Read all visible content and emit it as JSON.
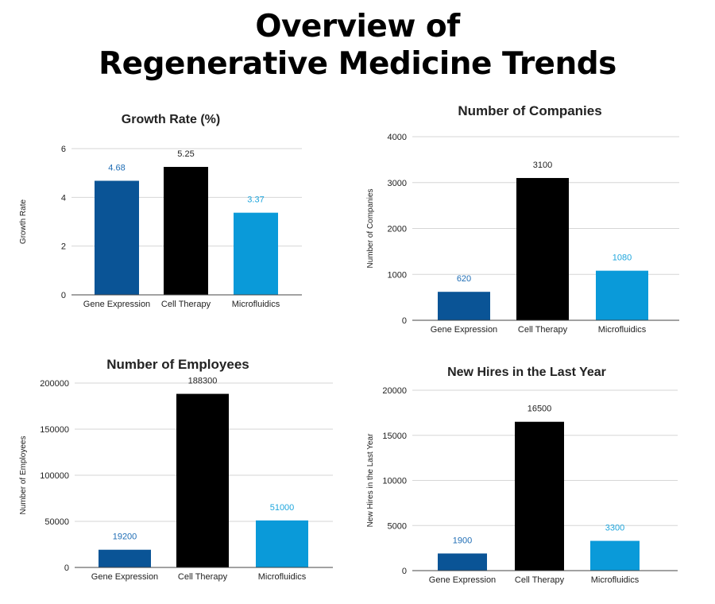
{
  "page": {
    "title_line1": "Overview of",
    "title_line2": "Regenerative Medicine Trends"
  },
  "colors": {
    "gene_expression": "#0a5496",
    "cell_therapy": "#000000",
    "microfluidics": "#0a9ad9",
    "label_blue": "#1f6db5",
    "label_light": "#1fa6dd",
    "label_dark": "#222222"
  },
  "chart_data": [
    {
      "id": "growth",
      "type": "bar",
      "title": "Growth Rate (%)",
      "xlabel": "",
      "ylabel": "Growth Rate",
      "categories": [
        "Gene Expression",
        "Cell Therapy",
        "Microfluidics"
      ],
      "values": [
        4.68,
        5.25,
        3.37
      ],
      "value_labels": [
        "4.68",
        "5.25",
        "3.37"
      ],
      "ylim": [
        0,
        6
      ],
      "yticks": [
        0,
        2,
        4,
        6
      ],
      "grid": true
    },
    {
      "id": "companies",
      "type": "bar",
      "title": "Number of Companies",
      "xlabel": "",
      "ylabel": "Number of Companies",
      "categories": [
        "Gene Expression",
        "Cell Therapy",
        "Microfluidics"
      ],
      "values": [
        620,
        3100,
        1080
      ],
      "value_labels": [
        "620",
        "3100",
        "1080"
      ],
      "ylim": [
        0,
        4000
      ],
      "yticks": [
        0,
        1000,
        2000,
        3000,
        4000
      ],
      "grid": true
    },
    {
      "id": "employees",
      "type": "bar",
      "title": "Number of Employees",
      "xlabel": "",
      "ylabel": "Number of Employees",
      "categories": [
        "Gene Expression",
        "Cell Therapy",
        "Microfluidics"
      ],
      "values": [
        19200,
        188300,
        51000
      ],
      "value_labels": [
        "19200",
        "188300",
        "51000"
      ],
      "ylim": [
        0,
        200000
      ],
      "yticks": [
        0,
        50000,
        100000,
        150000,
        200000
      ],
      "grid": true
    },
    {
      "id": "hires",
      "type": "bar",
      "title": "New Hires in the Last Year",
      "xlabel": "",
      "ylabel": "New Hires in the Last Year",
      "categories": [
        "Gene Expression",
        "Cell Therapy",
        "Microfluidics"
      ],
      "values": [
        1900,
        16500,
        3300
      ],
      "value_labels": [
        "1900",
        "16500",
        "3300"
      ],
      "ylim": [
        0,
        20000
      ],
      "yticks": [
        0,
        5000,
        10000,
        15000,
        20000
      ],
      "grid": true
    }
  ]
}
